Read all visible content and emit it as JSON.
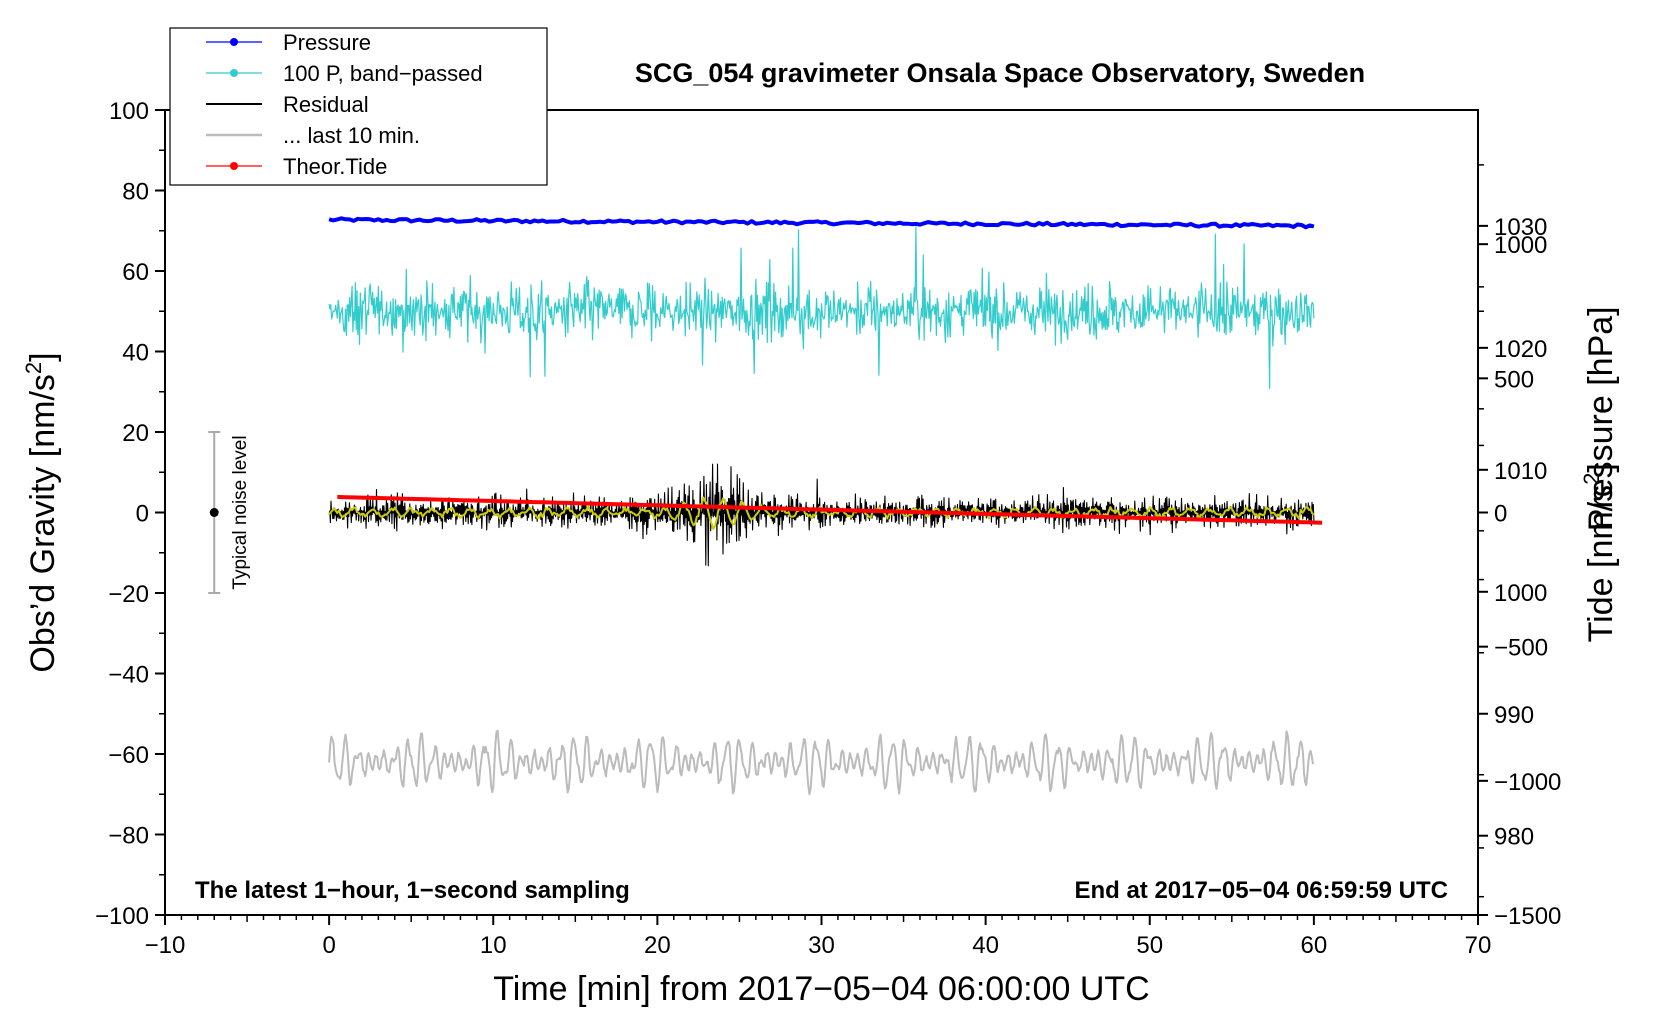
{
  "chart_data": {
    "type": "line",
    "title": "SCG_054 gravimeter Onsala Space Observatory, Sweden",
    "xlabel": "Time [min] from 2017−05−04 06:00:00 UTC",
    "ylabel_left_main": "Obs’d Gravity [nm/s",
    "ylabel_left_sup": "2",
    "ylabel_left_end": "]",
    "ylabel_right_pressure": "Pressure [hPa]",
    "ylabel_right_tide_main": "Tide [nm/s",
    "ylabel_right_tide_sup": "2",
    "ylabel_right_tide_end": "]",
    "xlim": [
      -10,
      70
    ],
    "ylim": [
      -100,
      100
    ],
    "pressure_lim": [
      973.5,
      1039.5
    ],
    "tide_lim": [
      -1500,
      1500
    ],
    "x_ticks": [
      -10,
      0,
      10,
      20,
      30,
      40,
      50,
      60,
      70
    ],
    "x_tick_labels": [
      "−10",
      "0",
      "10",
      "20",
      "30",
      "40",
      "50",
      "60",
      "70"
    ],
    "y_ticks": [
      -100,
      -80,
      -60,
      -40,
      -20,
      0,
      20,
      40,
      60,
      80,
      100
    ],
    "y_tick_labels": [
      "−100",
      "−80",
      "−60",
      "−40",
      "−20",
      "0",
      "20",
      "40",
      "60",
      "80",
      "100"
    ],
    "pressure_ticks": [
      980,
      990,
      1000,
      1010,
      1020,
      1030
    ],
    "pressure_tick_labels": [
      "980",
      "990",
      "1000",
      "1010",
      "1020",
      "1030"
    ],
    "tide_ticks": [
      -1500,
      -1000,
      -500,
      0,
      500,
      1000
    ],
    "tide_tick_labels": [
      "−1500",
      "−1000",
      "−500",
      "0",
      "500",
      "1000"
    ],
    "annotation_left": "The latest 1−hour, 1−second sampling",
    "annotation_right": "End at 2017−05−04 06:59:59 UTC",
    "noise_bar": {
      "label": "Typical noise level",
      "x": -7,
      "center": 0,
      "half_range": 20
    },
    "series": [
      {
        "name": "Pressure",
        "color": "#0000ff",
        "marker": true,
        "x_range": [
          0,
          60
        ],
        "approx_value_hpa": "1030.5 → 1030.0"
      },
      {
        "name": "100 P, band−passed",
        "color": "#33cccc",
        "marker": true,
        "x_range": [
          0,
          60
        ],
        "baseline": 50,
        "amplitude_range": [
          27,
          67
        ]
      },
      {
        "name": "Residual",
        "color": "#000000",
        "marker": false,
        "x_range": [
          0,
          60
        ],
        "baseline": 0,
        "amplitude_range": [
          -15,
          12
        ]
      },
      {
        "name": "... last 10 min.",
        "color": "#bbbbbb",
        "marker": false,
        "x_range": [
          0,
          60
        ],
        "baseline": -62,
        "amplitude_range": [
          -70,
          -52
        ]
      },
      {
        "name": "Theor.Tide",
        "color": "#ff0000",
        "marker": true,
        "x_range": [
          0.5,
          60.5
        ],
        "tide_values": [
          58,
          -38
        ]
      }
    ],
    "smoothed_residual_color": "#cccc00",
    "legend_placement": "top-left"
  }
}
